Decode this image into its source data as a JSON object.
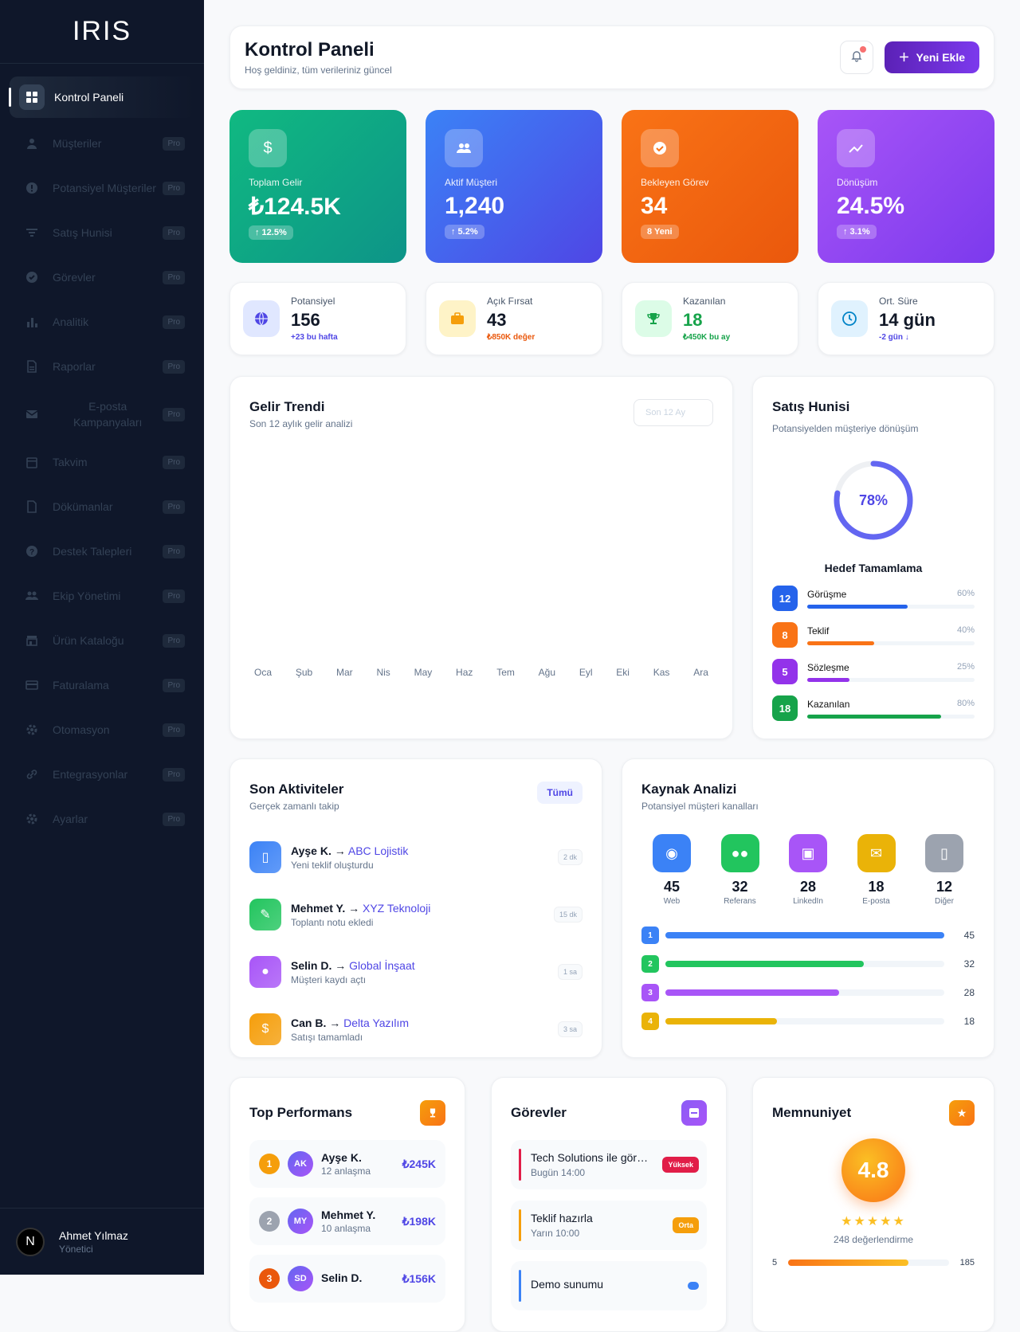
{
  "brand": "IRIS",
  "sidebar": {
    "items": [
      {
        "label": "Kontrol Paneli",
        "icon": "grid-icon",
        "active": true
      },
      {
        "label": "Müşteriler",
        "badge": "Pro",
        "icon": "user-icon"
      },
      {
        "label": "Potansiyel Müşteriler",
        "badge": "Pro",
        "icon": "info-icon"
      },
      {
        "label": "Satış Hunisi",
        "badge": "Pro",
        "icon": "filter-icon"
      },
      {
        "label": "Görevler",
        "badge": "Pro",
        "icon": "check-icon"
      },
      {
        "label": "Analitik",
        "badge": "Pro",
        "icon": "bar-chart-icon"
      },
      {
        "label": "Raporlar",
        "badge": "Pro",
        "icon": "file-icon"
      },
      {
        "label": "E-posta Kampanyaları",
        "badge": "Pro",
        "icon": "mail-icon"
      },
      {
        "label": "Takvim",
        "badge": "Pro",
        "icon": "calendar-icon"
      },
      {
        "label": "Dökümanlar",
        "badge": "Pro",
        "icon": "document-icon"
      },
      {
        "label": "Destek Talepleri",
        "badge": "Pro",
        "icon": "help-icon"
      },
      {
        "label": "Ekip Yönetimi",
        "badge": "Pro",
        "icon": "team-icon"
      },
      {
        "label": "Ürün Kataloğu",
        "badge": "Pro",
        "icon": "store-icon"
      },
      {
        "label": "Faturalama",
        "badge": "Pro",
        "icon": "credit-card-icon"
      },
      {
        "label": "Otomasyon",
        "badge": "Pro",
        "icon": "gear-icon"
      },
      {
        "label": "Entegrasyonlar",
        "badge": "Pro",
        "icon": "link-icon"
      },
      {
        "label": "Ayarlar",
        "badge": "Pro",
        "icon": "settings-icon"
      }
    ],
    "user": {
      "initial": "N",
      "name": "Ahmet Yılmaz",
      "role": "Yönetici"
    }
  },
  "header": {
    "title": "Kontrol Paneli",
    "subtitle": "Hoş geldiniz, tüm verileriniz güncel",
    "add_label": "Yeni Ekle"
  },
  "stats": [
    {
      "label": "Toplam Gelir",
      "value": "₺124.5K",
      "badge": "↑ 12.5%",
      "icon": "dollar-icon",
      "color": "#10b981"
    },
    {
      "label": "Aktif Müşteri",
      "value": "1,240",
      "badge": "↑ 5.2%",
      "icon": "users-icon",
      "color": "#3b82f6"
    },
    {
      "label": "Bekleyen Görev",
      "value": "34",
      "badge": "8 Yeni",
      "icon": "check-circle-icon",
      "color": "#f97316"
    },
    {
      "label": "Dönüşüm",
      "value": "24.5%",
      "badge": "↑ 3.1%",
      "icon": "trending-up-icon",
      "color": "#a855f7"
    }
  ],
  "minis": [
    {
      "label": "Potansiyel",
      "value": "156",
      "sub": "+23 bu hafta",
      "icon": "globe-icon",
      "color": "#4f46e5"
    },
    {
      "label": "Açık Fırsat",
      "value": "43",
      "sub": "₺850K değer",
      "icon": "briefcase-icon",
      "color": "#ea580c"
    },
    {
      "label": "Kazanılan",
      "value": "18",
      "sub": "₺450K bu ay",
      "icon": "trophy-icon",
      "color": "#16a34a"
    },
    {
      "label": "Ort. Süre",
      "value": "14 gün",
      "sub": "-2 gün ↓",
      "icon": "clock-icon",
      "color": "#0284c7"
    }
  ],
  "trend": {
    "title": "Gelir Trendi",
    "subtitle": "Son 12 aylık gelir analizi",
    "select": "Son 12 Ay",
    "months": [
      "Oca",
      "Şub",
      "Mar",
      "Nis",
      "May",
      "Haz",
      "Tem",
      "Ağu",
      "Eyl",
      "Eki",
      "Kas",
      "Ara"
    ]
  },
  "funnel": {
    "title": "Satış Hunisi",
    "subtitle": "Potansiyelden müşteriye dönüşüm",
    "percent": "78%",
    "progress": 0.78,
    "goal": "Hedef Tamamlama",
    "stages": [
      {
        "count": "12",
        "label": "Görüşme",
        "pct": "60%",
        "value": 0.6,
        "color": "#2563eb"
      },
      {
        "count": "8",
        "label": "Teklif",
        "pct": "40%",
        "value": 0.4,
        "color": "#f97316"
      },
      {
        "count": "5",
        "label": "Sözleşme",
        "pct": "25%",
        "value": 0.25,
        "color": "#9333ea"
      },
      {
        "count": "18",
        "label": "Kazanılan",
        "pct": "80%",
        "value": 0.8,
        "color": "#16a34a"
      }
    ]
  },
  "activities": {
    "title": "Son Aktiviteler",
    "subtitle": "Gerçek zamanlı takip",
    "all_label": "Tümü",
    "items": [
      {
        "person": "Ayşe K.",
        "arrow": " → ",
        "company": "ABC Lojistik",
        "action": "Yeni teklif oluşturdu",
        "time": "2 dk",
        "icon": "document-icon",
        "color": "#3b82f6"
      },
      {
        "person": "Mehmet Y.",
        "arrow": " → ",
        "company": "XYZ Teknoloji",
        "action": "Toplantı notu ekledi",
        "time": "15 dk",
        "icon": "edit-icon",
        "color": "#22c55e"
      },
      {
        "person": "Selin D.",
        "arrow": " → ",
        "company": "Global İnşaat",
        "action": "Müşteri kaydı açtı",
        "time": "1 sa",
        "icon": "user-icon",
        "color": "#a855f7"
      },
      {
        "person": "Can B.",
        "arrow": " → ",
        "company": "Delta Yazılım",
        "action": "Satışı tamamladı",
        "time": "3 sa",
        "icon": "dollar-icon",
        "color": "#f59e0b"
      }
    ]
  },
  "sources": {
    "title": "Kaynak Analizi",
    "subtitle": "Potansiyel müşteri kanalları",
    "items": [
      {
        "value": "45",
        "name": "Web",
        "icon": "globe-icon",
        "color": "#3b82f6"
      },
      {
        "value": "32",
        "name": "Referans",
        "icon": "users-icon",
        "color": "#22c55e"
      },
      {
        "value": "28",
        "name": "LinkedIn",
        "icon": "briefcase-icon",
        "color": "#a855f7"
      },
      {
        "value": "18",
        "name": "E-posta",
        "icon": "mail-icon",
        "color": "#eab308"
      },
      {
        "value": "12",
        "name": "Diğer",
        "icon": "phone-icon",
        "color": "#9ca3af"
      }
    ],
    "bars": [
      {
        "rank": "1",
        "value": 45,
        "label": "45",
        "color": "#3b82f6"
      },
      {
        "rank": "2",
        "value": 32,
        "label": "32",
        "color": "#22c55e"
      },
      {
        "rank": "3",
        "value": 28,
        "label": "28",
        "color": "#a855f7"
      },
      {
        "rank": "4",
        "value": 18,
        "label": "18",
        "color": "#eab308"
      }
    ]
  },
  "top": {
    "title": "Top Performans",
    "items": [
      {
        "rank": "1",
        "initials": "AK",
        "name": "Ayşe K.",
        "deals": "12 anlaşma",
        "amount": "₺245K",
        "color": "#f59e0b"
      },
      {
        "rank": "2",
        "initials": "MY",
        "name": "Mehmet Y.",
        "deals": "10 anlaşma",
        "amount": "₺198K",
        "color": "#9ca3af"
      },
      {
        "rank": "3",
        "initials": "SD",
        "name": "Selin D.",
        "deals": "",
        "amount": "₺156K",
        "color": "#ea580c"
      }
    ]
  },
  "tasks": {
    "title": "Görevler",
    "items": [
      {
        "name": "Tech Solutions ile görüşme",
        "date": "Bugün 14:00",
        "badge": "Yüksek",
        "color": "#e11d48"
      },
      {
        "name": "Teklif hazırla",
        "date": "Yarın 10:00",
        "badge": "Orta",
        "color": "#f59e0b"
      },
      {
        "name": "Demo sunumu",
        "date": "",
        "badge": "",
        "color": "#3b82f6"
      }
    ]
  },
  "rating": {
    "title": "Memnuniyet",
    "score": "4.8",
    "stars": "★★★★★",
    "count": "248 değerlendirme",
    "rows": [
      {
        "star": "5",
        "count": "185",
        "value": 0.75
      }
    ]
  }
}
